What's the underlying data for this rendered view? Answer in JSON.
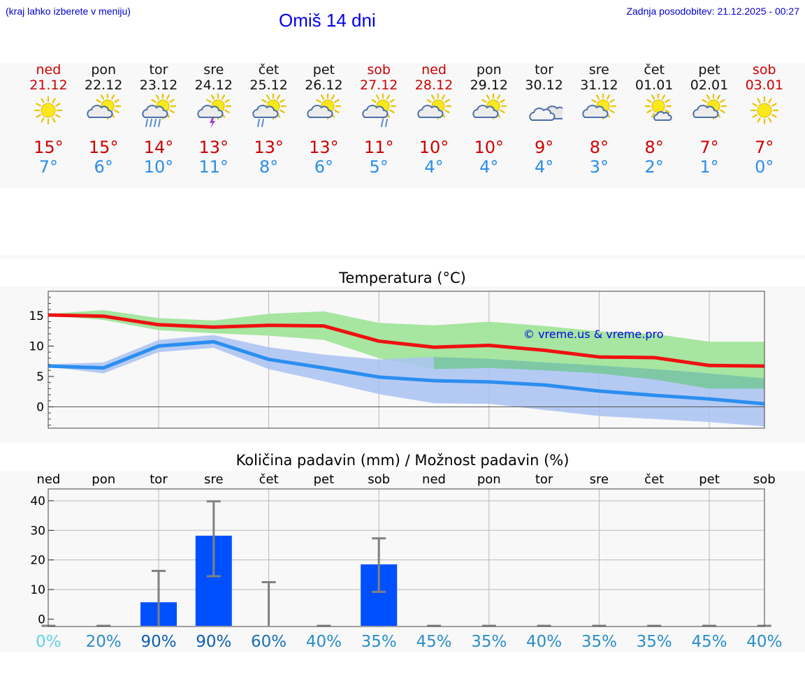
{
  "header": {
    "hint": "(kraj lahko izberete v meniju)",
    "title": "Omiš 14 dni",
    "updated": "Zadnja posodobitev: 21.12.2025 - 00:27"
  },
  "colors": {
    "tmax": "#cc0000",
    "tmin": "#2a8ee8",
    "red_line": "#ee1111",
    "blue_line": "#2b8ef0",
    "red_band": "#a6e6a0",
    "blue_band": "#a9c2f2",
    "overlap_band": "#7fc8a6",
    "bar": "#0050ff",
    "err": "#808080"
  },
  "days": [
    {
      "name": "ned",
      "date": "21.12",
      "weekend": true,
      "icon": "sun-icon",
      "tmax": "15°",
      "tmin": "7°"
    },
    {
      "name": "pon",
      "date": "22.12",
      "weekend": false,
      "icon": "sun-cloud-icon",
      "tmax": "15°",
      "tmin": "6°"
    },
    {
      "name": "tor",
      "date": "23.12",
      "weekend": false,
      "icon": "sun-cloud-rain-icon",
      "tmax": "14°",
      "tmin": "10°"
    },
    {
      "name": "sre",
      "date": "24.12",
      "weekend": false,
      "icon": "sun-cloud-thunderstorm-icon",
      "tmax": "13°",
      "tmin": "11°"
    },
    {
      "name": "čet",
      "date": "25.12",
      "weekend": false,
      "icon": "sun-cloud-light-rain-icon",
      "tmax": "13°",
      "tmin": "8°"
    },
    {
      "name": "pet",
      "date": "26.12",
      "weekend": false,
      "icon": "sun-cloud-icon",
      "tmax": "13°",
      "tmin": "6°"
    },
    {
      "name": "sob",
      "date": "27.12",
      "weekend": true,
      "icon": "sun-cloud-shower-icon",
      "tmax": "11°",
      "tmin": "5°"
    },
    {
      "name": "ned",
      "date": "28.12",
      "weekend": true,
      "icon": "sun-cloud-icon",
      "tmax": "10°",
      "tmin": "4°"
    },
    {
      "name": "pon",
      "date": "29.12",
      "weekend": false,
      "icon": "sun-cloud-icon",
      "tmax": "10°",
      "tmin": "4°"
    },
    {
      "name": "tor",
      "date": "30.12",
      "weekend": false,
      "icon": "cloudy-icon",
      "tmax": "9°",
      "tmin": "4°"
    },
    {
      "name": "sre",
      "date": "31.12",
      "weekend": false,
      "icon": "sun-cloud-icon",
      "tmax": "8°",
      "tmin": "3°"
    },
    {
      "name": "čet",
      "date": "01.01",
      "weekend": false,
      "icon": "sun-small-cloud-icon",
      "tmax": "8°",
      "tmin": "2°"
    },
    {
      "name": "pet",
      "date": "02.01",
      "weekend": false,
      "icon": "sun-cloud-icon",
      "tmax": "7°",
      "tmin": "1°"
    },
    {
      "name": "sob",
      "date": "03.01",
      "weekend": true,
      "icon": "sun-icon",
      "tmax": "7°",
      "tmin": "0°"
    }
  ],
  "chart_data": [
    {
      "type": "line",
      "title": "Temperatura (°C)",
      "watermark": "© vreme.us & vreme.pro",
      "ylim": [
        -3.5,
        19
      ],
      "yticks": [
        0,
        5,
        10,
        15
      ],
      "ytick_labels": [
        "0",
        "5",
        "10",
        "15"
      ],
      "grid": true,
      "series": [
        {
          "name": "max",
          "values": [
            15.1,
            14.9,
            13.5,
            13.1,
            13.4,
            13.3,
            10.8,
            9.8,
            10.1,
            9.3,
            8.2,
            8.1,
            6.8,
            6.7
          ],
          "band_low": [
            15.0,
            14.3,
            12.6,
            12.1,
            11.7,
            11.0,
            8.0,
            6.2,
            6.4,
            6.0,
            5.5,
            4.5,
            3.0,
            3.0
          ],
          "band_high": [
            15.3,
            15.9,
            14.6,
            14.2,
            15.3,
            15.7,
            13.8,
            13.4,
            14.0,
            13.3,
            12.4,
            12.0,
            10.7,
            10.7
          ]
        },
        {
          "name": "min",
          "values": [
            6.7,
            6.4,
            10.0,
            10.7,
            7.8,
            6.4,
            4.9,
            4.3,
            4.1,
            3.6,
            2.6,
            1.9,
            1.3,
            0.5
          ],
          "band_low": [
            6.6,
            5.5,
            9.0,
            9.7,
            6.2,
            4.2,
            2.1,
            0.6,
            0.5,
            -0.5,
            -1.5,
            -2.0,
            -2.5,
            -3.2
          ],
          "band_high": [
            7.0,
            7.3,
            11.0,
            11.8,
            9.8,
            8.6,
            7.8,
            8.2,
            7.9,
            7.3,
            6.8,
            6.2,
            5.5,
            4.7
          ]
        }
      ]
    },
    {
      "type": "bar",
      "title": "Količina padavin (mm) / Možnost padavin (%)",
      "categories": [
        "ned",
        "pon",
        "tor",
        "sre",
        "čet",
        "pet",
        "sob",
        "ned",
        "pon",
        "tor",
        "sre",
        "čet",
        "pet",
        "sob"
      ],
      "values": [
        0,
        0,
        5.7,
        28.2,
        0,
        0,
        18.5,
        0,
        0,
        0,
        0,
        0,
        0,
        0
      ],
      "err_low": [
        0,
        0,
        0,
        14.5,
        0,
        0,
        9.2,
        0,
        0,
        0,
        0,
        0,
        0,
        0
      ],
      "err_high": [
        0,
        0,
        16.3,
        39.8,
        12.5,
        0,
        27.3,
        0,
        0,
        0,
        0,
        0,
        0,
        0
      ],
      "probability": [
        "0%",
        "20%",
        "90%",
        "90%",
        "60%",
        "40%",
        "35%",
        "45%",
        "35%",
        "40%",
        "35%",
        "35%",
        "45%",
        "40%"
      ],
      "probability_colors": [
        "#5fd3e8",
        "#2a8ec8",
        "#0d5eb0",
        "#0d5eb0",
        "#1a6fb8",
        "#2a8ec8",
        "#2a8ec8",
        "#2a8ec8",
        "#2a8ec8",
        "#2a8ec8",
        "#2a8ec8",
        "#2a8ec8",
        "#2a8ec8",
        "#2a8ec8"
      ],
      "ylim": [
        -2.5,
        44
      ],
      "yticks": [
        0,
        10,
        20,
        30,
        40
      ],
      "ytick_labels": [
        "0",
        "10",
        "20",
        "30",
        "40"
      ],
      "grid": true
    }
  ]
}
